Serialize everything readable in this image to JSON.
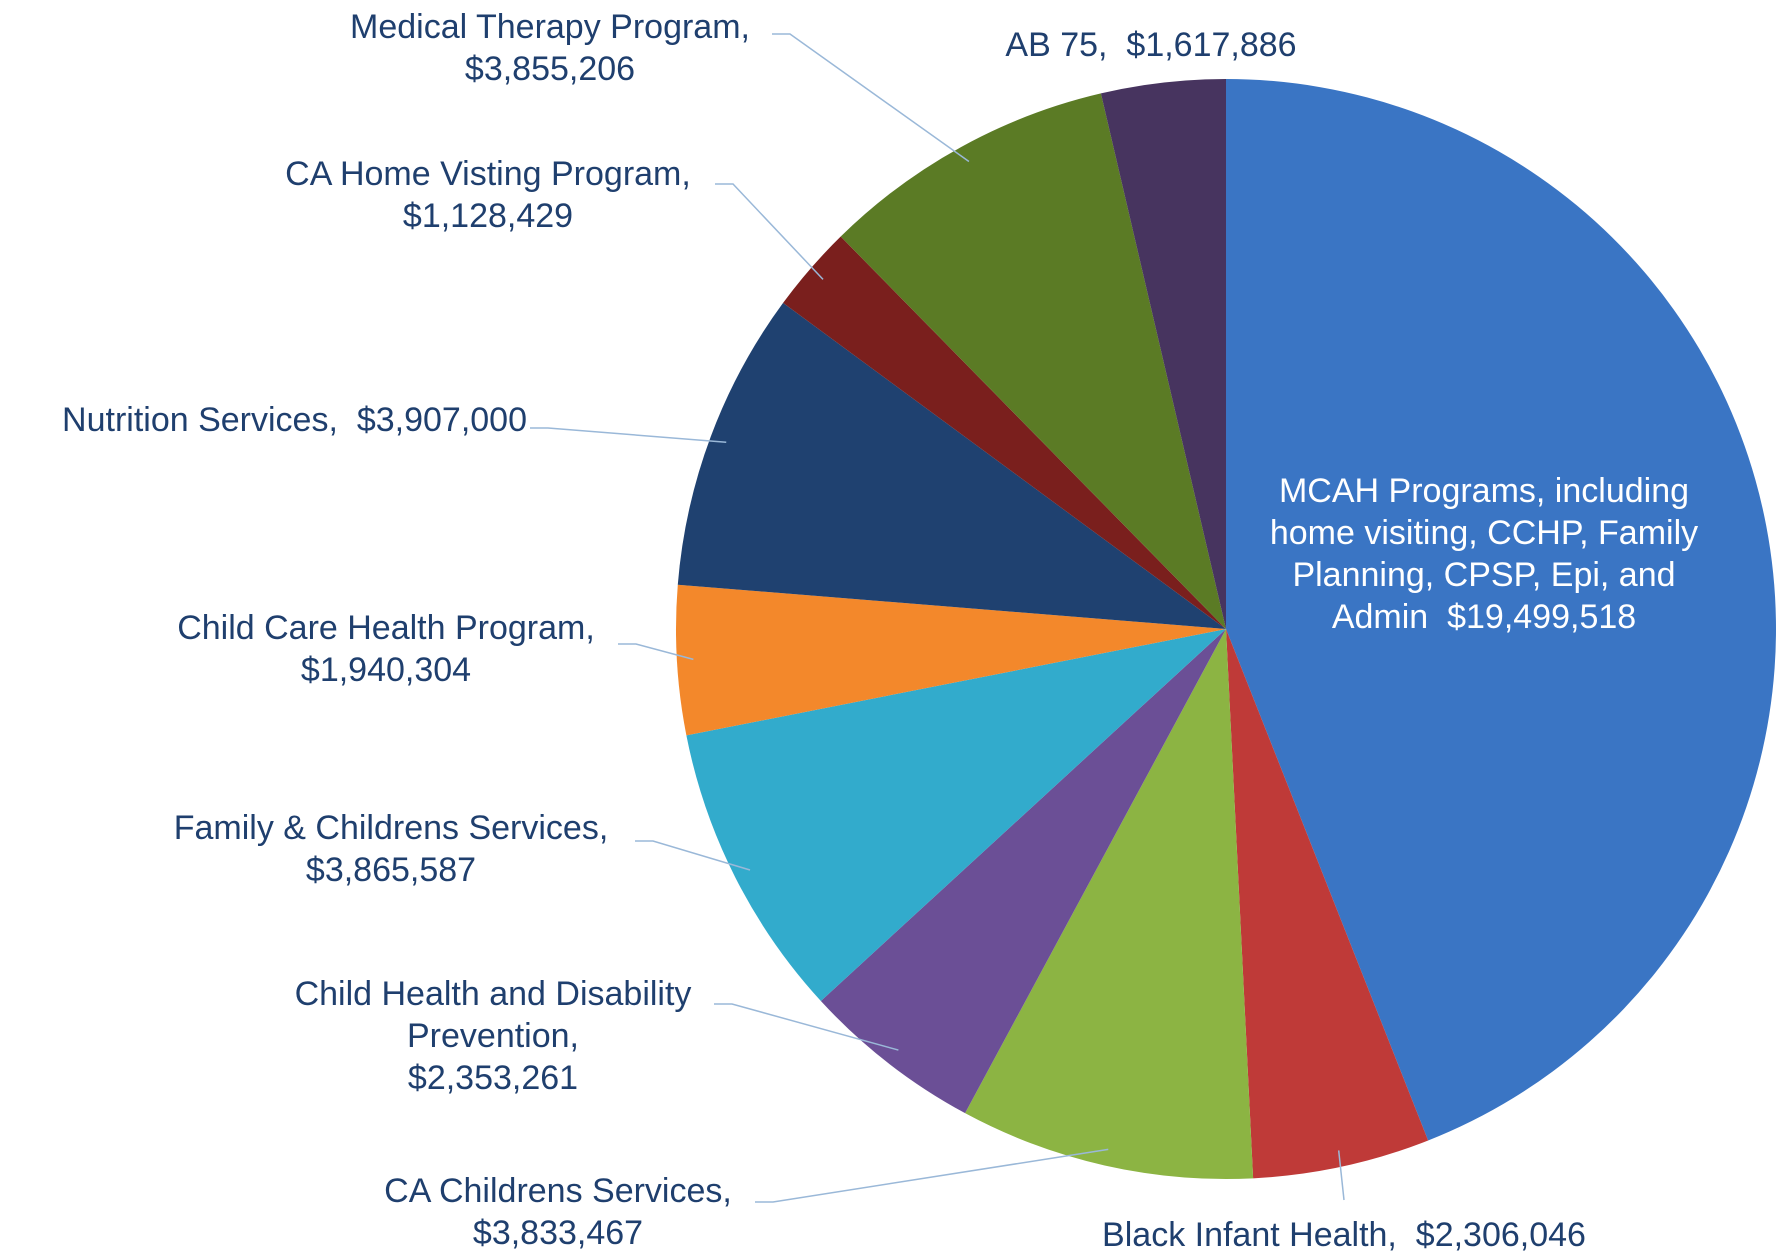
{
  "chart_data": {
    "type": "pie",
    "categories": [
      "MCAH Programs, including home visiting, CCHP, Family Planning, CPSP, Epi, and Admin",
      "Black Infant Health,",
      "CA Childrens Services,",
      "Child Health and Disability Prevention,",
      "Family & Childrens Services,",
      "Child Care Health Program,",
      "Nutrition Services,",
      "CA Home Visting Program,",
      "Medical Therapy Program,",
      "AB 75,"
    ],
    "values": [
      19499518,
      2306046,
      3833467,
      2353261,
      3865587,
      1940304,
      3907000,
      1128429,
      3855206,
      1617886
    ],
    "value_labels": [
      "$19,499,518",
      "$2,306,046",
      "$3,833,467",
      "$2,353,261",
      "$3,865,587",
      "$1,940,304",
      "$3,907,000",
      "$1,128,429",
      "$3,855,206",
      "$1,617,886"
    ],
    "colors": [
      "#3a75c4",
      "#bf3a38",
      "#8cb443",
      "#6b4f96",
      "#32abcc",
      "#f3882b",
      "#1f4170",
      "#7a1f1d",
      "#5b7b25",
      "#47345f"
    ]
  }
}
